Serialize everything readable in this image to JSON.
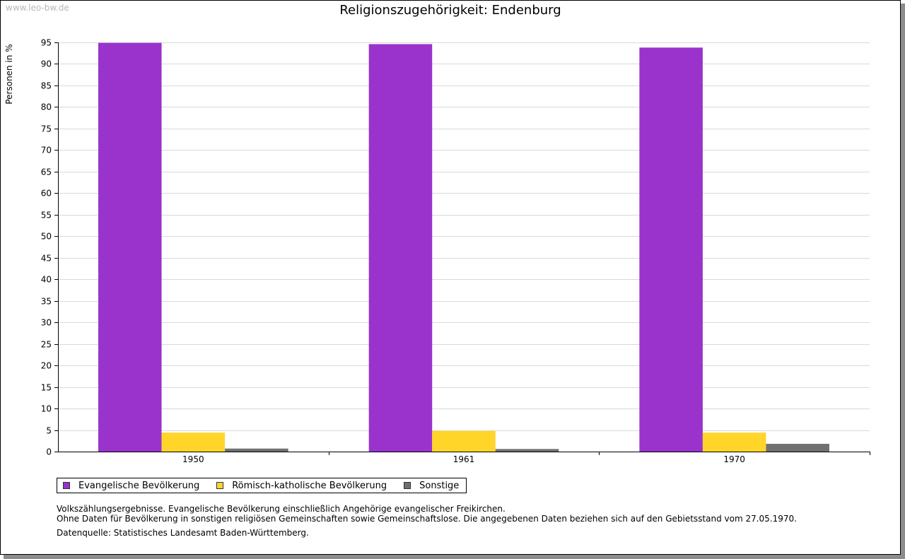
{
  "watermark": "www.leo-bw.de",
  "chart_data": {
    "type": "bar",
    "title": "Religionszugehörigkeit: Endenburg",
    "xlabel": "",
    "ylabel": "Personen in %",
    "ylim": [
      0,
      95
    ],
    "yticks": [
      0,
      5,
      10,
      15,
      20,
      25,
      30,
      35,
      40,
      45,
      50,
      55,
      60,
      65,
      70,
      75,
      80,
      85,
      90,
      95
    ],
    "grid": true,
    "legend_position": "bottom-left",
    "categories": [
      "1950",
      "1961",
      "1970"
    ],
    "series": [
      {
        "name": "Evangelische Bevölkerung",
        "color": "#9933cc",
        "values": [
          94.9,
          94.6,
          93.8
        ]
      },
      {
        "name": "Römisch-katholische Bevölkerung",
        "color": "#ffd52a",
        "values": [
          4.4,
          4.8,
          4.4
        ]
      },
      {
        "name": "Sonstige",
        "color": "#707070",
        "values": [
          0.7,
          0.6,
          1.8
        ]
      }
    ]
  },
  "notes": {
    "line1": "Volkszählungsergebnisse. Evangelische Bevölkerung einschließlich Angehörige evangelischer Freikirchen.",
    "line2": "Ohne Daten für Bevölkerung in sonstigen religiösen Gemeinschaften sowie Gemeinschaftslose. Die angegebenen Daten beziehen sich auf den Gebietsstand vom 27.05.1970.",
    "source": "Datenquelle: Statistisches Landesamt Baden-Württemberg."
  }
}
